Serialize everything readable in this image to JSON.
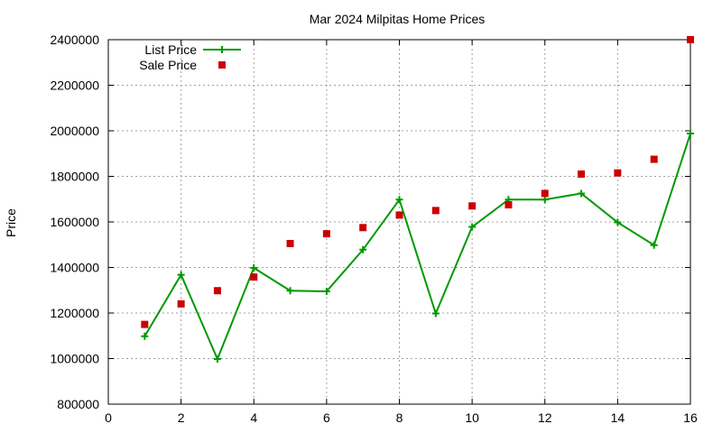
{
  "chart_data": {
    "type": "line",
    "title": "Mar 2024 Milpitas Home Prices",
    "xlabel": "",
    "ylabel": "Price",
    "xlim": [
      0,
      16
    ],
    "ylim": [
      800000,
      2400000
    ],
    "x_ticks": [
      0,
      2,
      4,
      6,
      8,
      10,
      12,
      14,
      16
    ],
    "y_ticks": [
      800000,
      1000000,
      1200000,
      1400000,
      1600000,
      1800000,
      2000000,
      2200000,
      2400000
    ],
    "x_tick_labels": [
      "0",
      "2",
      "4",
      "6",
      "8",
      "10",
      "12",
      "14",
      "16"
    ],
    "y_tick_labels": [
      "800000",
      "1000000",
      "1200000",
      "1400000",
      "1600000",
      "1800000",
      "2000000",
      "2200000",
      "2400000"
    ],
    "grid": true,
    "legend_position": "top-left",
    "series": [
      {
        "name": "List Price",
        "style": "line-points",
        "marker": "plus",
        "color": "#009900",
        "x": [
          1,
          2,
          3,
          4,
          5,
          6,
          7,
          8,
          9,
          10,
          11,
          12,
          13,
          14,
          15,
          16
        ],
        "y": [
          1098000,
          1368000,
          998000,
          1398000,
          1298000,
          1295000,
          1478000,
          1698000,
          1198000,
          1578000,
          1698000,
          1698000,
          1725000,
          1598000,
          1498000,
          1988000
        ]
      },
      {
        "name": "Sale Price",
        "style": "points",
        "marker": "square",
        "color": "#cc0000",
        "x": [
          1,
          2,
          3,
          4,
          5,
          6,
          7,
          8,
          9,
          10,
          11,
          12,
          13,
          14,
          15,
          16
        ],
        "y": [
          1150000,
          1240000,
          1298000,
          1358000,
          1505000,
          1548000,
          1575000,
          1630000,
          1650000,
          1670000,
          1675000,
          1725000,
          1810000,
          1815000,
          1875000,
          2400000
        ]
      }
    ]
  }
}
